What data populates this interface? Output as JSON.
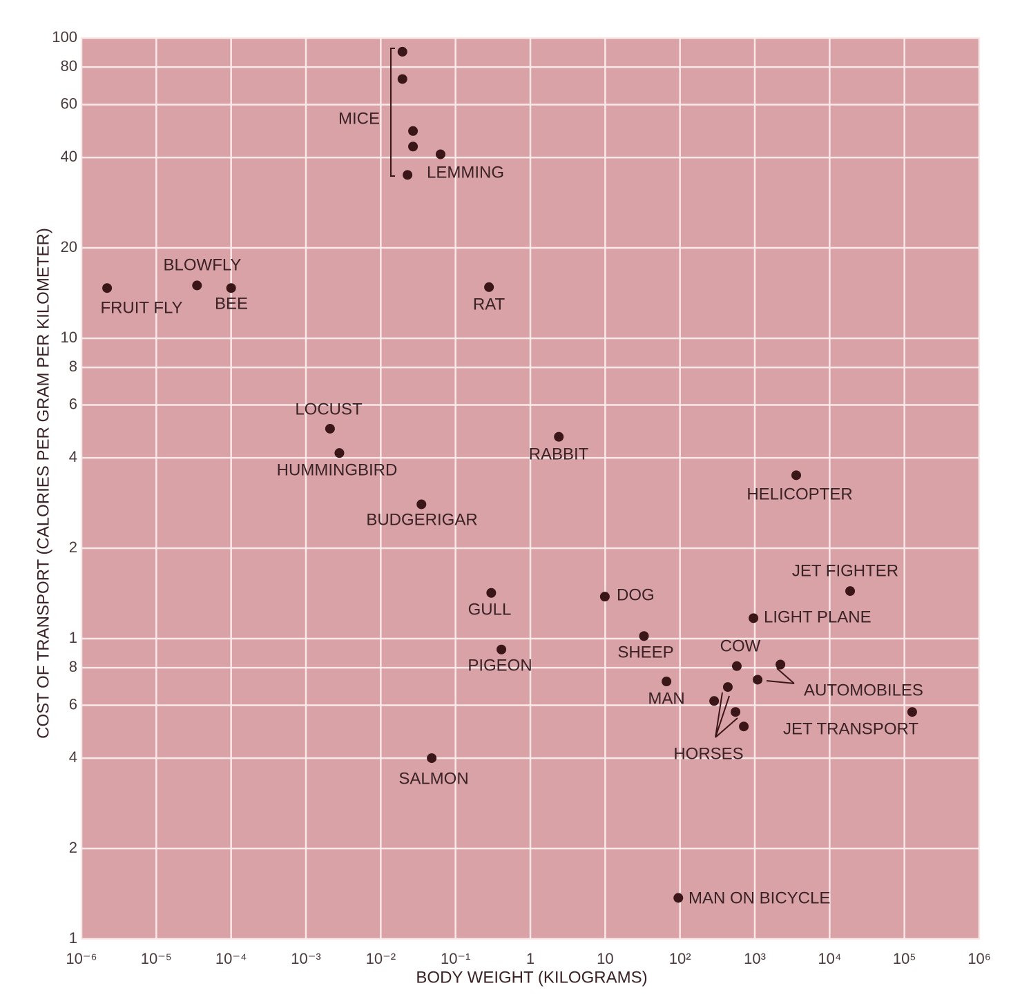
{
  "chart_data": {
    "type": "scatter",
    "x_label": "BODY WEIGHT (KILOGRAMS)",
    "y_label": "COST OF TRANSPORT (CALORIES PER GRAM PER KILOMETER)",
    "x_scale": "log",
    "y_scale": "log",
    "grid": true,
    "color": "#3a1618",
    "xlim": [
      1e-06,
      1000000
    ],
    "ylim": [
      0.1,
      100
    ],
    "xticks": [
      {
        "value": 1e-06,
        "label": "10⁻⁶"
      },
      {
        "value": 1e-05,
        "label": "10⁻⁵"
      },
      {
        "value": 0.0001,
        "label": "10⁻⁴"
      },
      {
        "value": 0.001,
        "label": "10⁻³"
      },
      {
        "value": 0.01,
        "label": "10⁻²"
      },
      {
        "value": 0.1,
        "label": "10⁻¹"
      },
      1,
      10,
      {
        "value": 100,
        "label": "10²"
      },
      {
        "value": 1000,
        "label": "10³"
      },
      {
        "value": 10000,
        "label": "10⁴"
      },
      {
        "value": 100000,
        "label": "10⁵"
      },
      {
        "value": 1000000,
        "label": "10⁶"
      }
    ],
    "yticks": [
      100,
      80,
      60,
      40,
      20,
      10,
      8,
      6,
      4,
      2,
      1,
      {
        "value": 0.8,
        "label": "8"
      },
      {
        "value": 0.6,
        "label": "6"
      },
      {
        "value": 0.4,
        "label": "4"
      },
      {
        "value": 0.2,
        "label": "2"
      },
      {
        "value": 0.1,
        "label": "1"
      }
    ],
    "x": [
      0.0195,
      0.0195,
      0.027,
      0.027,
      0.063,
      0.0228,
      2.2e-06,
      3.5e-05,
      0.0001,
      0.28,
      0.0021,
      0.0028,
      2.4,
      3580,
      0.035,
      18800,
      0.3,
      9.9,
      960,
      33,
      0.41,
      575,
      2200,
      1090,
      66,
      436,
      286,
      552,
      127000,
      713,
      0.048,
      95
    ],
    "values": [
      90,
      73,
      49,
      43.5,
      41,
      35,
      14.7,
      15,
      14.7,
      14.8,
      5.0,
      4.15,
      4.7,
      3.5,
      2.8,
      1.44,
      1.42,
      1.38,
      1.17,
      1.02,
      0.92,
      0.81,
      0.82,
      0.73,
      0.72,
      0.69,
      0.62,
      0.57,
      0.57,
      0.51,
      0.4,
      0.137
    ],
    "annotations": [
      "MICE",
      "LEMMING",
      "BLOWFLY",
      "FRUIT FLY",
      "BEE",
      "RAT",
      "LOCUST",
      "HUMMINGBIRD",
      "RABBIT",
      "HELICOPTER",
      "BUDGERIGAR",
      "JET FIGHTER",
      "GULL",
      "DOG",
      "LIGHT PLANE",
      "SHEEP",
      "PIGEON",
      "COW",
      "AUTOMOBILES",
      "MAN",
      "JET TRANSPORT",
      "HORSES",
      "SALMON",
      "MAN ON BICYCLE"
    ]
  }
}
